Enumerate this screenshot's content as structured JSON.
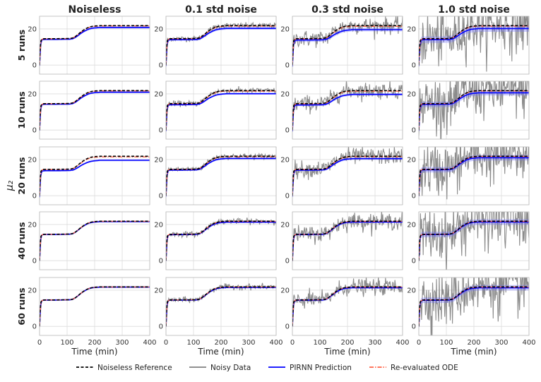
{
  "figure": {
    "column_titles": [
      "Noiseless",
      "0.1 std noise",
      "0.3 std noise",
      "1.0 std noise"
    ],
    "row_labels": [
      "5 runs",
      "10 runs",
      "20 runs",
      "40 runs",
      "60 runs"
    ],
    "shared_ylabel": "μ₂",
    "xlabel": "Time (min)"
  },
  "legend": {
    "placement": "bottom-center",
    "entries": [
      {
        "label": "Noiseless Reference",
        "color": "#000000",
        "style": "dashed"
      },
      {
        "label": "Noisy Data",
        "color": "#808080",
        "style": "solid"
      },
      {
        "label": "PIRNN Prediction",
        "color": "#0000ff",
        "style": "solid"
      },
      {
        "label": "Re-evaluated ODE",
        "color": "#ff6347",
        "style": "dashdot"
      }
    ]
  },
  "chart_data": {
    "type": "line",
    "grid": true,
    "layout": "5x4 small multiples",
    "xlim": [
      0,
      400
    ],
    "ylim": [
      -5,
      27
    ],
    "xticks": [
      0,
      100,
      200,
      300,
      400
    ],
    "yticks": [
      0,
      20
    ],
    "noise_std_by_column": [
      0,
      0.1,
      0.3,
      1.0
    ],
    "reference_curve": {
      "name": "Noiseless Reference",
      "x": [
        0,
        2,
        5,
        10,
        20,
        60,
        110,
        120,
        130,
        140,
        150,
        160,
        170,
        180,
        190,
        200,
        220,
        250,
        300,
        350,
        400
      ],
      "y": [
        0,
        8,
        13.5,
        14.5,
        14.6,
        14.6,
        14.7,
        15.0,
        15.8,
        17.0,
        18.3,
        19.4,
        20.3,
        21.0,
        21.4,
        21.6,
        21.8,
        21.8,
        21.8,
        21.8,
        21.8
      ]
    },
    "pirnn_plateau_by_panel": [
      [
        20.8,
        20.3,
        19.6,
        20.2
      ],
      [
        20.9,
        20.1,
        19.7,
        20.6
      ],
      [
        19.6,
        20.6,
        20.5,
        21.0
      ],
      [
        21.6,
        21.3,
        21.4,
        21.4
      ],
      [
        21.7,
        21.5,
        21.4,
        21.3
      ]
    ]
  }
}
